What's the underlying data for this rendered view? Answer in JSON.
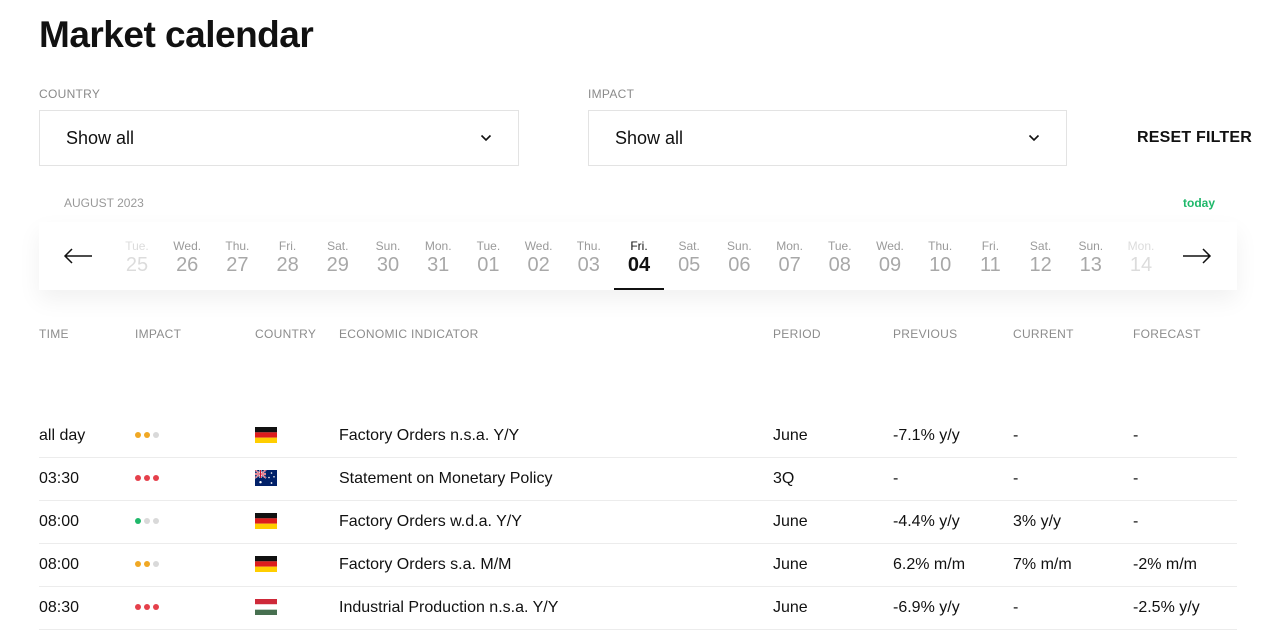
{
  "page": {
    "title": "Market calendar"
  },
  "filters": {
    "country": {
      "label": "COUNTRY",
      "value": "Show all"
    },
    "impact": {
      "label": "IMPACT",
      "value": "Show all"
    },
    "reset_label": "RESET FILTER"
  },
  "calendar": {
    "month_label": "AUGUST 2023",
    "today_label": "today",
    "days": [
      {
        "name": "Tue.",
        "num": "25"
      },
      {
        "name": "Wed.",
        "num": "26"
      },
      {
        "name": "Thu.",
        "num": "27"
      },
      {
        "name": "Fri.",
        "num": "28"
      },
      {
        "name": "Sat.",
        "num": "29"
      },
      {
        "name": "Sun.",
        "num": "30"
      },
      {
        "name": "Mon.",
        "num": "31"
      },
      {
        "name": "Tue.",
        "num": "01"
      },
      {
        "name": "Wed.",
        "num": "02"
      },
      {
        "name": "Thu.",
        "num": "03"
      },
      {
        "name": "Fri.",
        "num": "04"
      },
      {
        "name": "Sat.",
        "num": "05"
      },
      {
        "name": "Sun.",
        "num": "06"
      },
      {
        "name": "Mon.",
        "num": "07"
      },
      {
        "name": "Tue.",
        "num": "08"
      },
      {
        "name": "Wed.",
        "num": "09"
      },
      {
        "name": "Thu.",
        "num": "10"
      },
      {
        "name": "Fri.",
        "num": "11"
      },
      {
        "name": "Sat.",
        "num": "12"
      },
      {
        "name": "Sun.",
        "num": "13"
      },
      {
        "name": "Mon.",
        "num": "14"
      }
    ],
    "selected_day": "04"
  },
  "table": {
    "headers": {
      "time": "TIME",
      "impact": "IMPACT",
      "country": "COUNTRY",
      "indicator": "ECONOMIC INDICATOR",
      "period": "PERIOD",
      "previous": "PREVIOUS",
      "current": "CURRENT",
      "forecast": "FORECAST"
    },
    "rows": [
      {
        "time": "all day",
        "impact_level": 2,
        "impact_color": "#f0a824",
        "flag": "germany-flag",
        "indicator": "Factory Orders n.s.a. Y/Y",
        "period": "June",
        "previous": "-7.1% y/y",
        "current": "-",
        "forecast": "-"
      },
      {
        "time": "03:30",
        "impact_level": 3,
        "impact_color": "#e5404b",
        "flag": "australia-flag",
        "indicator": "Statement on Monetary Policy",
        "period": "3Q",
        "previous": "-",
        "current": "-",
        "forecast": "-"
      },
      {
        "time": "08:00",
        "impact_level": 1,
        "impact_color": "#1fb86a",
        "flag": "germany-flag",
        "indicator": "Factory Orders w.d.a. Y/Y",
        "period": "June",
        "previous": "-4.4% y/y",
        "current": "3% y/y",
        "forecast": "-"
      },
      {
        "time": "08:00",
        "impact_level": 2,
        "impact_color": "#f0a824",
        "flag": "germany-flag",
        "indicator": "Factory Orders s.a. M/M",
        "period": "June",
        "previous": "6.2% m/m",
        "current": "7% m/m",
        "forecast": "-2% m/m"
      },
      {
        "time": "08:30",
        "impact_level": 3,
        "impact_color": "#e5404b",
        "flag": "hungary-flag",
        "indicator": "Industrial Production n.s.a. Y/Y",
        "period": "June",
        "previous": "-6.9% y/y",
        "current": "-",
        "forecast": "-2.5% y/y"
      }
    ]
  },
  "icons": {
    "prev": "arrow-left-icon",
    "next": "arrow-right-icon",
    "dropdown": "chevron-down-icon"
  }
}
